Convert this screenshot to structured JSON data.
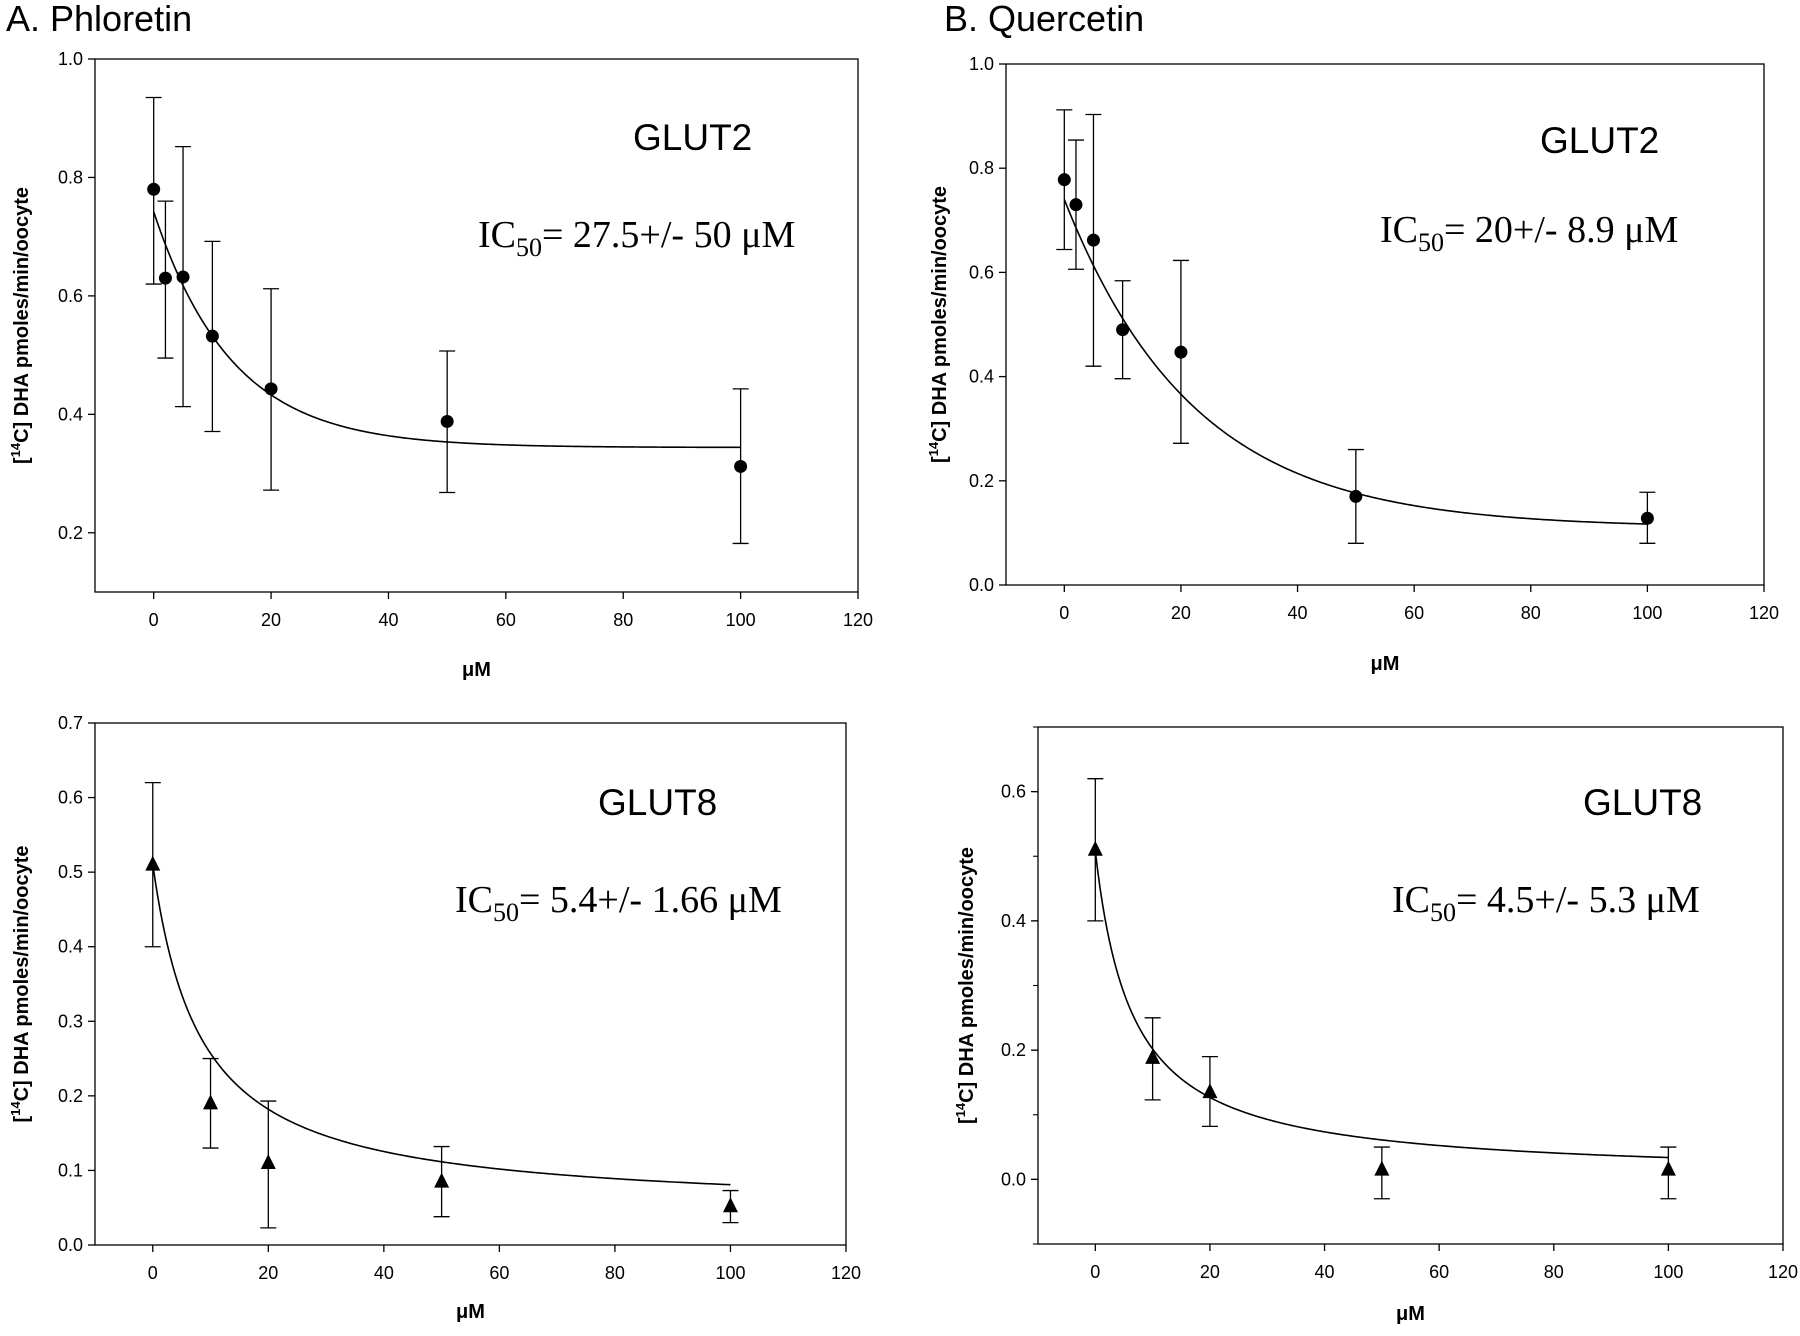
{
  "panels": {
    "a_title": "A. Phloretin",
    "b_title": "B. Quercetin"
  },
  "chart_data": [
    {
      "type": "scatter",
      "panel": "A. Phloretin",
      "label": "GLUT2",
      "ic50_prefix": "IC",
      "ic50_sub": "50",
      "ic50_value": "= 27.5+/- 50 μM",
      "ylabel_pre": "[",
      "ylabel_sup": "14",
      "ylabel_post": "C] DHA pmoles/min/oocyte",
      "xlabel": "μM",
      "xlim": [
        -10,
        120
      ],
      "ylim": [
        0.1,
        1.0
      ],
      "xticks": [
        0,
        20,
        40,
        60,
        80,
        100,
        120
      ],
      "yticks": [
        0.2,
        0.4,
        0.6,
        0.8,
        1.0
      ],
      "ytick_labels": [
        "0.2",
        "0.4",
        "0.6",
        "0.8",
        "1.0"
      ],
      "marker": "circle",
      "points": [
        {
          "x": 0,
          "y": 0.78,
          "err_low": 0.62,
          "err_high": 0.935
        },
        {
          "x": 2,
          "y": 0.63,
          "err_low": 0.495,
          "err_high": 0.76
        },
        {
          "x": 5,
          "y": 0.632,
          "err_low": 0.413,
          "err_high": 0.852
        },
        {
          "x": 10,
          "y": 0.532,
          "err_low": 0.371,
          "err_high": 0.692
        },
        {
          "x": 20,
          "y": 0.443,
          "err_low": 0.272,
          "err_high": 0.612
        },
        {
          "x": 50,
          "y": 0.388,
          "err_low": 0.268,
          "err_high": 0.507
        },
        {
          "x": 100,
          "y": 0.312,
          "err_low": 0.182,
          "err_high": 0.443
        }
      ],
      "fit": {
        "plateau": 0.344,
        "span": 0.398,
        "k": 0.075,
        "xmin": 0,
        "xmax": 100
      }
    },
    {
      "type": "scatter",
      "panel": "B. Quercetin",
      "label": "GLUT2",
      "ic50_prefix": "IC",
      "ic50_sub": "50",
      "ic50_value": "= 20+/- 8.9 μM",
      "ylabel_pre": "[",
      "ylabel_sup": "14",
      "ylabel_post": "C] DHA pmoles/min/oocyte",
      "xlabel": "μM",
      "xlim": [
        -10,
        120
      ],
      "ylim": [
        0.0,
        1.0
      ],
      "xticks": [
        0,
        20,
        40,
        60,
        80,
        100,
        120
      ],
      "yticks": [
        0.0,
        0.2,
        0.4,
        0.6,
        0.8,
        1.0
      ],
      "ytick_labels": [
        "0.0",
        "0.2",
        "0.4",
        "0.6",
        "0.8",
        "1.0"
      ],
      "marker": "circle",
      "points": [
        {
          "x": 0,
          "y": 0.778,
          "err_low": 0.644,
          "err_high": 0.912
        },
        {
          "x": 2,
          "y": 0.73,
          "err_low": 0.606,
          "err_high": 0.854
        },
        {
          "x": 5,
          "y": 0.662,
          "err_low": 0.42,
          "err_high": 0.903
        },
        {
          "x": 10,
          "y": 0.49,
          "err_low": 0.396,
          "err_high": 0.584
        },
        {
          "x": 20,
          "y": 0.447,
          "err_low": 0.272,
          "err_high": 0.623
        },
        {
          "x": 50,
          "y": 0.17,
          "err_low": 0.08,
          "err_high": 0.26
        },
        {
          "x": 100,
          "y": 0.128,
          "err_low": 0.08,
          "err_high": 0.178
        }
      ],
      "fit": {
        "plateau": 0.11,
        "span": 0.63,
        "k": 0.045,
        "xmin": 0,
        "xmax": 100
      }
    },
    {
      "type": "scatter",
      "panel": "A. Phloretin",
      "label": "GLUT8",
      "ic50_prefix": "IC",
      "ic50_sub": "50",
      "ic50_value": "= 5.4+/- 1.66 μM",
      "ylabel_pre": "[",
      "ylabel_sup": "14",
      "ylabel_post": "C] DHA pmoles/min/oocyte",
      "xlabel": "μM",
      "xlim": [
        -10,
        120
      ],
      "ylim": [
        0.0,
        0.7
      ],
      "xticks": [
        0,
        20,
        40,
        60,
        80,
        100,
        120
      ],
      "yticks": [
        0.0,
        0.1,
        0.2,
        0.3,
        0.4,
        0.5,
        0.6,
        0.7
      ],
      "ytick_labels": [
        "0.0",
        "0.1",
        "0.2",
        "0.3",
        "0.4",
        "0.5",
        "0.6",
        "0.7"
      ],
      "marker": "triangle",
      "points": [
        {
          "x": 0,
          "y": 0.51,
          "err_low": 0.4,
          "err_high": 0.62
        },
        {
          "x": 10,
          "y": 0.19,
          "err_low": 0.13,
          "err_high": 0.25
        },
        {
          "x": 20,
          "y": 0.11,
          "err_low": 0.023,
          "err_high": 0.193
        },
        {
          "x": 50,
          "y": 0.085,
          "err_low": 0.038,
          "err_high": 0.132
        },
        {
          "x": 100,
          "y": 0.052,
          "err_low": 0.03,
          "err_high": 0.073
        }
      ],
      "fit": {
        "a": 0.045,
        "b": 0.466,
        "k": 0.12,
        "xmin": 0,
        "xmax": 100
      }
    },
    {
      "type": "scatter",
      "panel": "B. Quercetin",
      "label": "GLUT8",
      "ic50_prefix": "IC",
      "ic50_sub": "50",
      "ic50_value": "= 4.5+/- 5.3 μM",
      "ylabel_pre": "[",
      "ylabel_sup": "14",
      "ylabel_post": "C] DHA pmoles/min/oocyte",
      "xlabel": "μM",
      "xlim": [
        -10,
        120
      ],
      "ylim": [
        -0.1,
        0.7
      ],
      "xticks": [
        0,
        20,
        40,
        60,
        80,
        100,
        120
      ],
      "yticks": [
        0.0,
        0.2,
        0.4,
        0.6
      ],
      "ytick_labels": [
        "0.0",
        "0.2",
        "0.4",
        "0.6"
      ],
      "marker": "triangle",
      "points": [
        {
          "x": 0,
          "y": 0.51,
          "err_low": 0.4,
          "err_high": 0.62
        },
        {
          "x": 10,
          "y": 0.188,
          "err_low": 0.123,
          "err_high": 0.25
        },
        {
          "x": 20,
          "y": 0.135,
          "err_low": 0.082,
          "err_high": 0.19
        },
        {
          "x": 50,
          "y": 0.015,
          "err_low": -0.03,
          "err_high": 0.05
        },
        {
          "x": 100,
          "y": 0.015,
          "err_low": -0.03,
          "err_high": 0.05
        }
      ],
      "fit": {
        "a": 0.003,
        "b": 0.505,
        "k": 0.154,
        "xmin": 0,
        "xmax": 100
      }
    }
  ]
}
